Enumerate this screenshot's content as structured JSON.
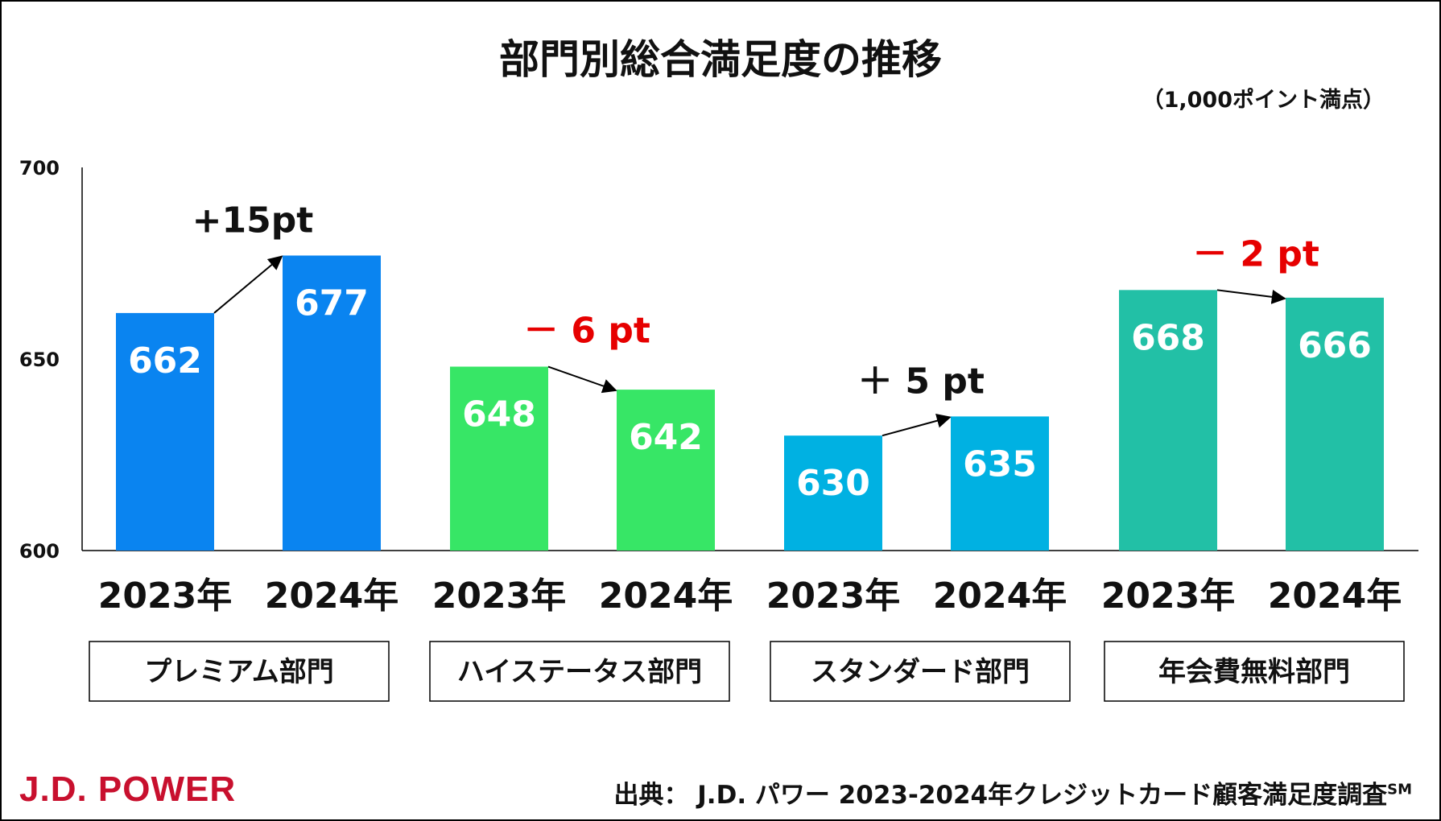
{
  "chart_data": {
    "type": "bar",
    "title": "部門別総合満足度の推移",
    "unit_note": "（1,000ポイント満点）",
    "ylim": [
      600,
      700
    ],
    "yticks": [
      600,
      650,
      700
    ],
    "groups": [
      {
        "label": "プレミアム部門",
        "color": "#0a84f0",
        "change": "+15pt",
        "change_color": "#111111",
        "bars": [
          {
            "year": "2023年",
            "value": 662
          },
          {
            "year": "2024年",
            "value": 677
          }
        ]
      },
      {
        "label": "ハイステータス部門",
        "color": "#37e666",
        "change": "－ 6 pt",
        "change_color": "#e60000",
        "bars": [
          {
            "year": "2023年",
            "value": 648
          },
          {
            "year": "2024年",
            "value": 642
          }
        ]
      },
      {
        "label": "スタンダード部門",
        "color": "#00b1e2",
        "change": "＋ 5 pt",
        "change_color": "#111111",
        "bars": [
          {
            "year": "2023年",
            "value": 630
          },
          {
            "year": "2024年",
            "value": 635
          }
        ]
      },
      {
        "label": "年会費無料部門",
        "color": "#22c0a6",
        "change": "－ 2 pt",
        "change_color": "#e60000",
        "bars": [
          {
            "year": "2023年",
            "value": 668
          },
          {
            "year": "2024年",
            "value": 666
          }
        ]
      }
    ]
  },
  "source": {
    "text": "出典： J.D. パワー 2023-2024年クレジットカード顧客満足度調査",
    "mark": "SM"
  },
  "logo": "J.D. POWER"
}
